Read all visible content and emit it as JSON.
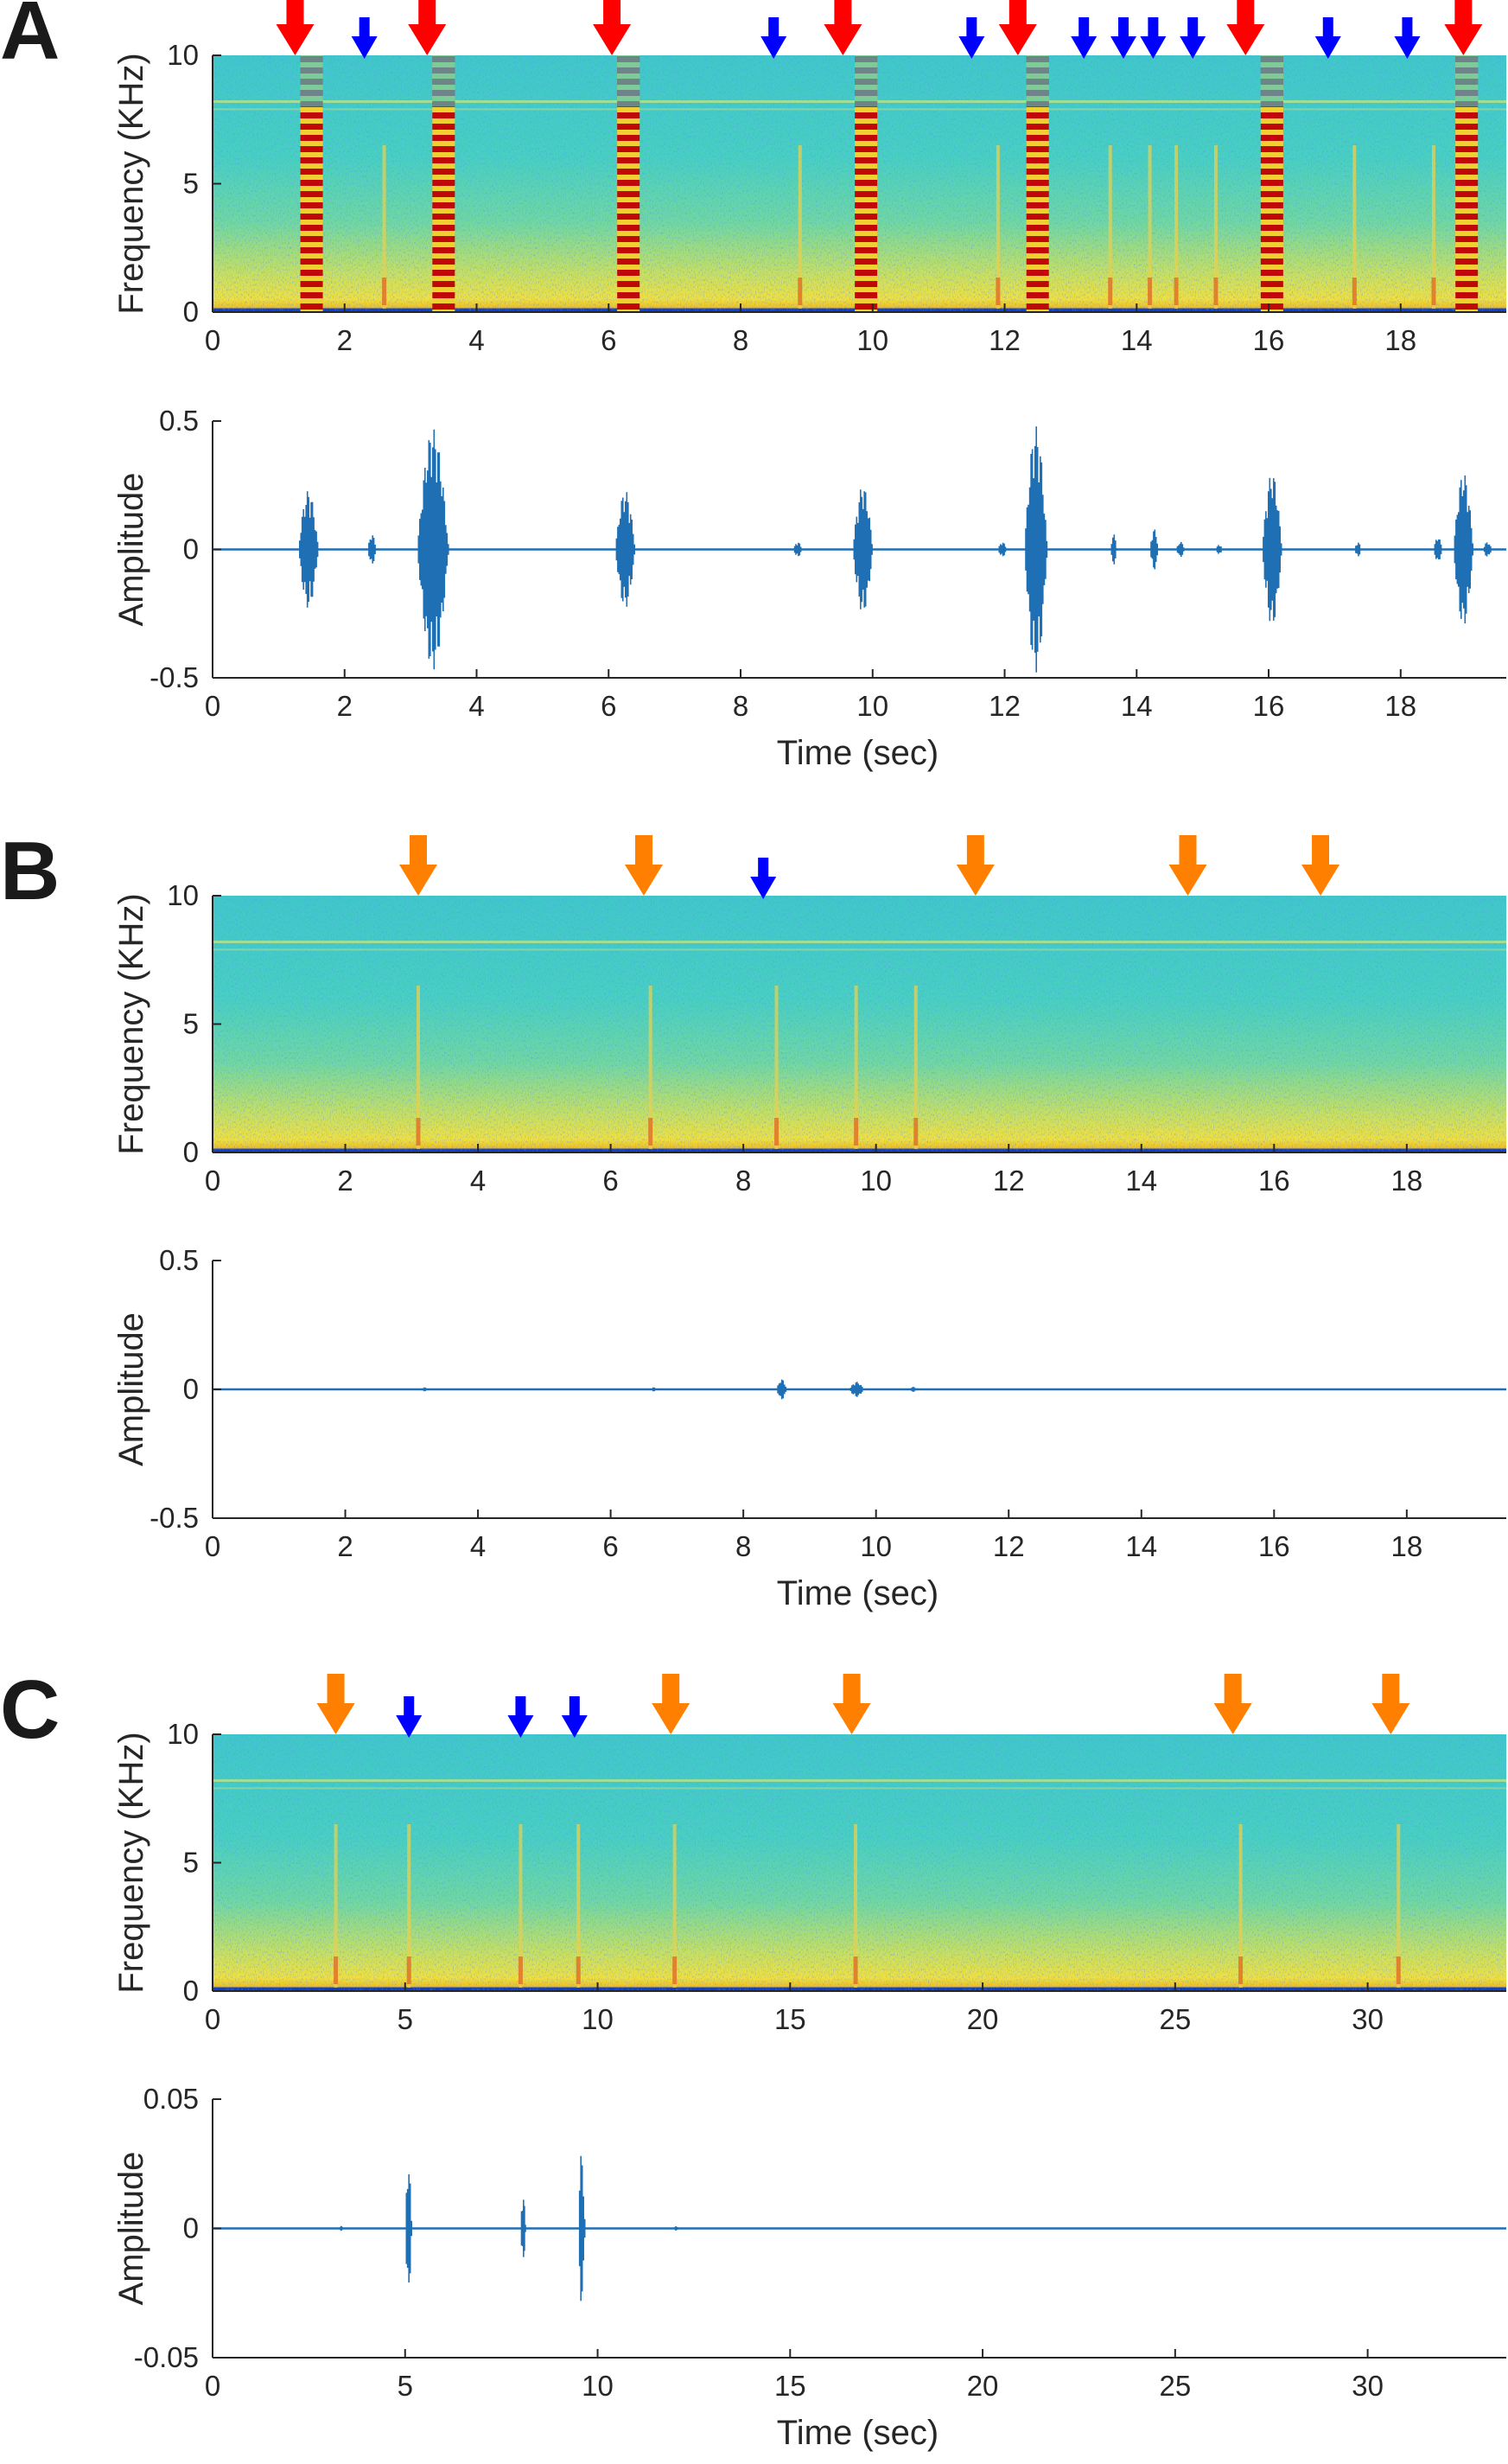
{
  "panels": [
    {
      "letter": "A",
      "x_ticks": [
        "0",
        "2",
        "4",
        "6",
        "8",
        "10",
        "12",
        "14",
        "16",
        "18"
      ],
      "x_tick_values": [
        0,
        2,
        4,
        6,
        8,
        10,
        12,
        14,
        16,
        18
      ],
      "xlim": [
        0,
        19.6
      ]
    },
    {
      "letter": "B",
      "x_ticks": [
        "0",
        "2",
        "4",
        "6",
        "8",
        "10",
        "12",
        "14",
        "16",
        "18"
      ],
      "x_tick_values": [
        0,
        2,
        4,
        6,
        8,
        10,
        12,
        14,
        16,
        18
      ],
      "xlim": [
        0,
        19.5
      ]
    },
    {
      "letter": "C",
      "x_ticks": [
        "0",
        "5",
        "10",
        "15",
        "20",
        "25",
        "30"
      ],
      "x_tick_values": [
        0,
        5,
        10,
        15,
        20,
        25,
        30
      ],
      "xlim": [
        0,
        33.6
      ]
    }
  ],
  "colors": {
    "waveform": "#1f6fb5",
    "arrow_red": "#ff0000",
    "arrow_blue": "#0000ff",
    "arrow_orange": "#ff8000",
    "spec_bg": "#40d0c0",
    "spec_low": "#e8e040",
    "spec_hot": "#d01010"
  },
  "chart_data": [
    {
      "type": "heatmap",
      "panel": "A",
      "title": "",
      "xlabel": "",
      "ylabel": "Frequency (KHz)",
      "ylim": [
        0,
        10
      ],
      "y_ticks": [
        "0",
        "5",
        "10"
      ],
      "y_tick_values": [
        0,
        5,
        10
      ],
      "strong_calls_sec": [
        1.5,
        3.5,
        6.3,
        9.9,
        12.5,
        16.05,
        19.0
      ],
      "weak_calls_sec": [
        2.6,
        8.9,
        11.9,
        13.6,
        14.2,
        14.6,
        15.2,
        17.3,
        18.5
      ],
      "arrows": [
        {
          "x": 1.25,
          "color": "red"
        },
        {
          "x": 2.3,
          "color": "blue"
        },
        {
          "x": 3.25,
          "color": "red"
        },
        {
          "x": 6.05,
          "color": "red"
        },
        {
          "x": 8.5,
          "color": "blue"
        },
        {
          "x": 9.55,
          "color": "red"
        },
        {
          "x": 11.5,
          "color": "blue"
        },
        {
          "x": 12.2,
          "color": "red"
        },
        {
          "x": 13.2,
          "color": "blue"
        },
        {
          "x": 13.8,
          "color": "blue"
        },
        {
          "x": 14.25,
          "color": "blue"
        },
        {
          "x": 14.85,
          "color": "blue"
        },
        {
          "x": 15.65,
          "color": "red"
        },
        {
          "x": 16.9,
          "color": "blue"
        },
        {
          "x": 18.1,
          "color": "blue"
        },
        {
          "x": 18.95,
          "color": "red"
        }
      ]
    },
    {
      "type": "line",
      "panel": "A",
      "title": "",
      "xlabel": "Time (sec)",
      "ylabel": "Amplitude",
      "ylim": [
        -0.5,
        0.5
      ],
      "y_ticks": [
        "-0.5",
        "0",
        "0.5"
      ],
      "y_tick_values": [
        -0.5,
        0,
        0.5
      ],
      "bursts": [
        {
          "t": 1.3,
          "d": 0.35,
          "a": 0.23
        },
        {
          "t": 2.35,
          "d": 0.15,
          "a": 0.06
        },
        {
          "t": 3.1,
          "d": 0.55,
          "a": 0.47
        },
        {
          "t": 6.1,
          "d": 0.35,
          "a": 0.23
        },
        {
          "t": 8.8,
          "d": 0.15,
          "a": 0.03
        },
        {
          "t": 9.7,
          "d": 0.35,
          "a": 0.25
        },
        {
          "t": 11.9,
          "d": 0.15,
          "a": 0.03
        },
        {
          "t": 12.3,
          "d": 0.4,
          "a": 0.48
        },
        {
          "t": 13.6,
          "d": 0.12,
          "a": 0.06
        },
        {
          "t": 14.2,
          "d": 0.15,
          "a": 0.08
        },
        {
          "t": 14.6,
          "d": 0.15,
          "a": 0.03
        },
        {
          "t": 15.2,
          "d": 0.12,
          "a": 0.02
        },
        {
          "t": 15.9,
          "d": 0.35,
          "a": 0.3
        },
        {
          "t": 17.3,
          "d": 0.12,
          "a": 0.03
        },
        {
          "t": 18.5,
          "d": 0.15,
          "a": 0.05
        },
        {
          "t": 18.8,
          "d": 0.35,
          "a": 0.3
        },
        {
          "t": 19.25,
          "d": 0.15,
          "a": 0.03
        }
      ]
    },
    {
      "type": "heatmap",
      "panel": "B",
      "title": "",
      "xlabel": "",
      "ylabel": "Frequency (KHz)",
      "ylim": [
        0,
        10
      ],
      "y_ticks": [
        "0",
        "5",
        "10"
      ],
      "y_tick_values": [
        0,
        5,
        10
      ],
      "strong_calls_sec": [],
      "weak_calls_sec": [
        3.1,
        6.6,
        8.5,
        9.7,
        10.6
      ],
      "arrows": [
        {
          "x": 3.1,
          "color": "orange"
        },
        {
          "x": 6.5,
          "color": "orange"
        },
        {
          "x": 8.3,
          "color": "blue"
        },
        {
          "x": 11.5,
          "color": "orange"
        },
        {
          "x": 14.7,
          "color": "orange"
        },
        {
          "x": 16.7,
          "color": "orange"
        }
      ]
    },
    {
      "type": "line",
      "panel": "B",
      "title": "",
      "xlabel": "Time (sec)",
      "ylabel": "Amplitude",
      "ylim": [
        -0.5,
        0.5
      ],
      "y_ticks": [
        "-0.5",
        "0",
        "0.5"
      ],
      "y_tick_values": [
        -0.5,
        0,
        0.5
      ],
      "bursts": [
        {
          "t": 3.15,
          "d": 0.12,
          "a": 0.008
        },
        {
          "t": 6.6,
          "d": 0.12,
          "a": 0.008
        },
        {
          "t": 8.5,
          "d": 0.18,
          "a": 0.04
        },
        {
          "t": 9.6,
          "d": 0.25,
          "a": 0.03
        },
        {
          "t": 10.5,
          "d": 0.15,
          "a": 0.01
        }
      ]
    },
    {
      "type": "heatmap",
      "panel": "C",
      "title": "",
      "xlabel": "",
      "ylabel": "Frequency (KHz)",
      "ylim": [
        0,
        10
      ],
      "y_ticks": [
        "0",
        "5",
        "10"
      ],
      "y_tick_values": [
        0,
        5,
        10
      ],
      "strong_calls_sec": [],
      "weak_calls_sec": [
        3.2,
        5.1,
        8.0,
        9.5,
        12.0,
        16.7,
        26.7,
        30.8
      ],
      "arrows": [
        {
          "x": 3.2,
          "color": "orange"
        },
        {
          "x": 5.1,
          "color": "blue"
        },
        {
          "x": 8.0,
          "color": "blue"
        },
        {
          "x": 9.4,
          "color": "blue"
        },
        {
          "x": 11.9,
          "color": "orange"
        },
        {
          "x": 16.6,
          "color": "orange"
        },
        {
          "x": 26.5,
          "color": "orange"
        },
        {
          "x": 30.6,
          "color": "orange"
        }
      ]
    },
    {
      "type": "line",
      "panel": "C",
      "title": "",
      "xlabel": "Time (sec)",
      "ylabel": "Amplitude",
      "ylim": [
        -0.05,
        0.05
      ],
      "y_ticks": [
        "-0.05",
        "0",
        "0.05"
      ],
      "y_tick_values": [
        -0.05,
        0,
        0.05
      ],
      "bursts": [
        {
          "t": 3.3,
          "d": 0.1,
          "a": 0.001
        },
        {
          "t": 5.0,
          "d": 0.2,
          "a": 0.026
        },
        {
          "t": 8.0,
          "d": 0.15,
          "a": 0.013
        },
        {
          "t": 9.5,
          "d": 0.2,
          "a": 0.03
        },
        {
          "t": 12.0,
          "d": 0.1,
          "a": 0.001
        }
      ]
    }
  ]
}
